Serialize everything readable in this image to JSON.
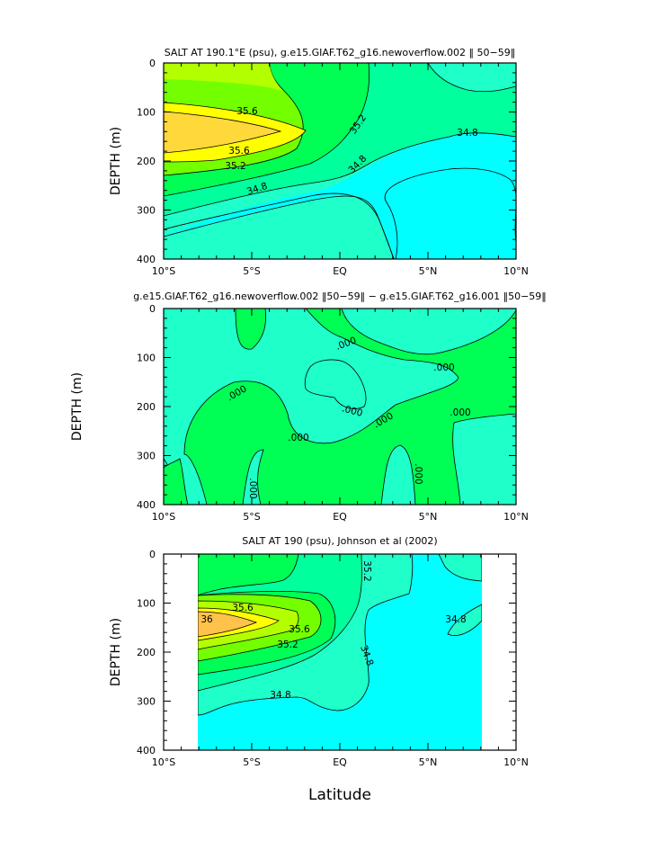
{
  "colors": {
    "cyan": "#00ffff",
    "aqua": "#1fffc9",
    "teal_green": "#00ff9d",
    "green": "#00ff55",
    "light_green": "#73ff00",
    "yellow_green": "#b3ff00",
    "yellow": "#ffff00",
    "gold": "#ffd83a",
    "orange": "#ffc24a"
  },
  "figure": {
    "xlabel": "Latitude"
  },
  "chart_data": [
    {
      "type": "contour",
      "title": "SALT AT 190.1°E (psu), g.e15.GIAF.T62_g16.newoverflow.002 ‖ 50−59‖",
      "ylabel": "DEPTH (m)",
      "xlim": [
        -10,
        10
      ],
      "ylim": [
        0,
        400
      ],
      "x_ticks": [
        "10°S",
        "5°S",
        "EQ",
        "5°N",
        "10°N"
      ],
      "y_ticks": [
        "0",
        "100",
        "200",
        "300",
        "400"
      ],
      "contour_labels": [
        "35.6",
        "35.6",
        "35.2",
        "35.2",
        "34.8",
        "34.8",
        "34.8"
      ]
    },
    {
      "type": "contour",
      "title": "g.e15.GIAF.T62_g16.newoverflow.002 ‖50−59‖ − g.e15.GIAF.T62_g16.001 ‖50−59‖",
      "ylabel": "DEPTH (m)",
      "xlim": [
        -10,
        10
      ],
      "ylim": [
        0,
        400
      ],
      "x_ticks": [
        "10°S",
        "5°S",
        "EQ",
        "5°N",
        "10°N"
      ],
      "y_ticks": [
        "0",
        "100",
        "200",
        "300",
        "400"
      ],
      "contour_labels": [
        ".000",
        ".000",
        ".000",
        ".000",
        ".000",
        ".000",
        ".000",
        ".000",
        ".000"
      ]
    },
    {
      "type": "contour",
      "title": "SALT AT 190 (psu), Johnson et al (2002)",
      "ylabel": "DEPTH (m)",
      "xlim": [
        -10,
        10
      ],
      "ylim": [
        0,
        400
      ],
      "data_xlim": [
        -8,
        8
      ],
      "x_ticks": [
        "10°S",
        "5°S",
        "EQ",
        "5°N",
        "10°N"
      ],
      "y_ticks": [
        "0",
        "100",
        "200",
        "300",
        "400"
      ],
      "contour_labels": [
        "35.2",
        "35.6",
        "36",
        "35.6",
        "35.2",
        "34.8",
        "34.8",
        "34.8"
      ]
    }
  ]
}
